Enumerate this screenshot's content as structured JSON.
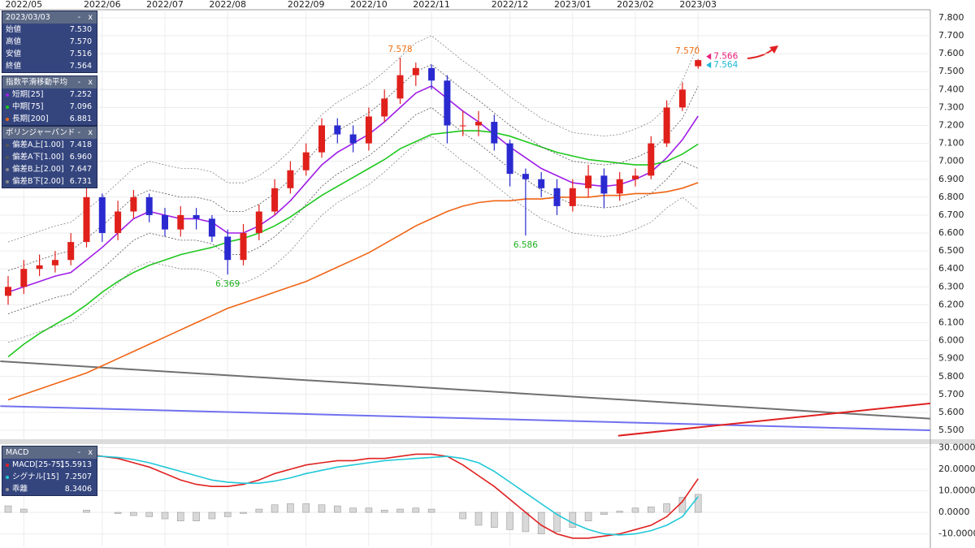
{
  "controls": {
    "minimize": "-",
    "close": "x"
  },
  "chart_data": [
    {
      "type": "candlestick",
      "categories": [
        null,
        "2022/05",
        null,
        null,
        null,
        null,
        "2022/06",
        null,
        null,
        null,
        "2022/07",
        null,
        null,
        null,
        "2022/08",
        null,
        null,
        null,
        null,
        "2022/09",
        null,
        null,
        null,
        "2022/10",
        null,
        null,
        null,
        "2022/11",
        null,
        null,
        null,
        null,
        "2022/12",
        null,
        null,
        null,
        "2023/01",
        null,
        null,
        null,
        "2023/02",
        null,
        null,
        null,
        "2023/03"
      ],
      "open": [
        6.25,
        6.3,
        6.4,
        6.42,
        6.45,
        6.55,
        6.8,
        6.6,
        6.72,
        6.8,
        6.7,
        6.62,
        6.7,
        6.68,
        6.58,
        6.45,
        6.6,
        6.72,
        6.85,
        6.95,
        7.05,
        7.2,
        7.15,
        7.1,
        7.25,
        7.35,
        7.48,
        7.52,
        7.45,
        7.2,
        7.2,
        7.22,
        7.1,
        6.93,
        6.9,
        6.85,
        6.75,
        6.85,
        6.92,
        6.82,
        6.9,
        6.92,
        7.1,
        7.3,
        7.53
      ],
      "high": [
        6.36,
        6.45,
        6.48,
        6.5,
        6.6,
        6.88,
        6.82,
        6.78,
        6.84,
        6.82,
        6.74,
        6.75,
        6.74,
        6.7,
        6.62,
        6.65,
        6.76,
        6.9,
        7.0,
        7.1,
        7.24,
        7.24,
        7.2,
        7.3,
        7.4,
        7.578,
        7.55,
        7.54,
        7.48,
        7.28,
        7.28,
        7.26,
        7.12,
        6.96,
        6.94,
        6.9,
        6.9,
        6.98,
        6.96,
        6.94,
        6.96,
        7.14,
        7.34,
        7.44,
        7.57
      ],
      "low": [
        6.2,
        6.26,
        6.36,
        6.38,
        6.42,
        6.52,
        6.55,
        6.56,
        6.68,
        6.66,
        6.58,
        6.58,
        6.62,
        6.55,
        6.369,
        6.42,
        6.56,
        6.7,
        6.82,
        6.92,
        7.02,
        7.1,
        7.05,
        7.06,
        7.22,
        7.32,
        7.42,
        7.4,
        7.1,
        7.14,
        7.14,
        7.06,
        6.86,
        6.586,
        6.8,
        6.7,
        6.72,
        6.8,
        6.74,
        6.78,
        6.86,
        6.9,
        7.08,
        7.28,
        7.516
      ],
      "close": [
        6.3,
        6.4,
        6.42,
        6.45,
        6.55,
        6.8,
        6.6,
        6.72,
        6.8,
        6.7,
        6.62,
        6.7,
        6.68,
        6.58,
        6.45,
        6.6,
        6.72,
        6.85,
        6.95,
        7.05,
        7.2,
        7.15,
        7.1,
        7.25,
        7.35,
        7.48,
        7.52,
        7.45,
        7.2,
        7.2,
        7.22,
        7.1,
        6.93,
        6.9,
        6.85,
        6.75,
        6.85,
        6.92,
        6.82,
        6.9,
        6.92,
        7.1,
        7.3,
        7.4,
        7.564
      ],
      "up_color": "#e0201b",
      "down_color": "#2a2ad0",
      "ohlc_panel": {
        "title": "2023/03/03",
        "rows": [
          {
            "name": "始値",
            "value": "7.530"
          },
          {
            "name": "高値",
            "value": "7.570"
          },
          {
            "name": "安値",
            "value": "7.516"
          },
          {
            "name": "終値",
            "value": "7.564"
          }
        ]
      },
      "legend_groups": [
        {
          "title": "指数平滑移動平均",
          "series": [
            0,
            1,
            2
          ]
        },
        {
          "title": "ボリンジャーバンド",
          "series": [
            3,
            4,
            5,
            6
          ]
        }
      ],
      "series": [
        {
          "name": "短期[25]",
          "color": "#a01ee6",
          "current": "7.252",
          "values": [
            6.27,
            6.3,
            6.33,
            6.36,
            6.38,
            6.45,
            6.52,
            6.6,
            6.68,
            6.72,
            6.7,
            6.68,
            6.68,
            6.66,
            6.6,
            6.6,
            6.64,
            6.7,
            6.78,
            6.88,
            6.98,
            7.05,
            7.1,
            7.15,
            7.22,
            7.3,
            7.38,
            7.42,
            7.35,
            7.28,
            7.22,
            7.15,
            7.08,
            7.02,
            6.96,
            6.92,
            6.88,
            6.87,
            6.86,
            6.87,
            6.9,
            6.94,
            7.02,
            7.12,
            7.252
          ]
        },
        {
          "name": "中期[75]",
          "color": "#1ec81e",
          "current": "7.096",
          "values": [
            5.91,
            5.98,
            6.04,
            6.09,
            6.14,
            6.2,
            6.27,
            6.33,
            6.38,
            6.42,
            6.45,
            6.48,
            6.5,
            6.52,
            6.55,
            6.57,
            6.6,
            6.64,
            6.69,
            6.75,
            6.81,
            6.86,
            6.91,
            6.96,
            7.01,
            7.07,
            7.11,
            7.15,
            7.16,
            7.17,
            7.17,
            7.16,
            7.14,
            7.11,
            7.08,
            7.05,
            7.03,
            7.01,
            7.0,
            6.99,
            6.98,
            6.98,
            7.0,
            7.04,
            7.096
          ]
        },
        {
          "name": "長期[200]",
          "color": "#f06414",
          "current": "6.881",
          "values": [
            5.67,
            5.7,
            5.73,
            5.76,
            5.79,
            5.82,
            5.86,
            5.9,
            5.94,
            5.98,
            6.02,
            6.06,
            6.1,
            6.14,
            6.18,
            6.21,
            6.24,
            6.27,
            6.3,
            6.33,
            6.37,
            6.41,
            6.45,
            6.49,
            6.54,
            6.59,
            6.64,
            6.68,
            6.72,
            6.75,
            6.77,
            6.78,
            6.78,
            6.79,
            6.79,
            6.8,
            6.8,
            6.8,
            6.81,
            6.81,
            6.82,
            6.82,
            6.83,
            6.85,
            6.881
          ]
        },
        {
          "name": "偏差A上[1.00]",
          "color": "#555555",
          "dotted": true,
          "current": "7.418",
          "values": [
            6.39,
            6.42,
            6.45,
            6.48,
            6.5,
            6.57,
            6.64,
            6.72,
            6.8,
            6.84,
            6.82,
            6.8,
            6.8,
            6.78,
            6.72,
            6.72,
            6.76,
            6.82,
            6.9,
            7.0,
            7.1,
            7.17,
            7.22,
            7.27,
            7.34,
            7.42,
            7.5,
            7.54,
            7.47,
            7.4,
            7.34,
            7.27,
            7.2,
            7.14,
            7.08,
            7.04,
            7.0,
            6.99,
            6.98,
            6.99,
            7.02,
            7.06,
            7.14,
            7.24,
            7.418
          ]
        },
        {
          "name": "偏差A下[1.00]",
          "color": "#555555",
          "dotted": true,
          "current": "6.960",
          "values": [
            6.15,
            6.18,
            6.21,
            6.24,
            6.26,
            6.33,
            6.4,
            6.48,
            6.56,
            6.6,
            6.58,
            6.56,
            6.56,
            6.54,
            6.48,
            6.48,
            6.52,
            6.58,
            6.66,
            6.76,
            6.86,
            6.93,
            6.98,
            7.03,
            7.1,
            7.18,
            7.26,
            7.3,
            7.23,
            7.16,
            7.1,
            7.03,
            6.96,
            6.9,
            6.84,
            6.8,
            6.76,
            6.75,
            6.74,
            6.75,
            6.78,
            6.82,
            6.9,
            7.0,
            6.96
          ]
        },
        {
          "name": "偏差B上[2.00]",
          "color": "#888888",
          "dotted": true,
          "current": "7.647",
          "values": [
            6.55,
            6.58,
            6.61,
            6.64,
            6.66,
            6.73,
            6.8,
            6.88,
            6.96,
            7.0,
            6.98,
            6.96,
            6.96,
            6.94,
            6.88,
            6.88,
            6.92,
            6.98,
            7.06,
            7.16,
            7.26,
            7.33,
            7.38,
            7.43,
            7.5,
            7.58,
            7.66,
            7.7,
            7.63,
            7.56,
            7.5,
            7.43,
            7.36,
            7.3,
            7.24,
            7.2,
            7.16,
            7.15,
            7.14,
            7.15,
            7.18,
            7.22,
            7.3,
            7.45,
            7.647
          ]
        },
        {
          "name": "偏差B下[2.00]",
          "color": "#888888",
          "dotted": true,
          "current": "6.731",
          "values": [
            5.99,
            6.02,
            6.05,
            6.08,
            6.1,
            6.17,
            6.24,
            6.32,
            6.4,
            6.44,
            6.42,
            6.4,
            6.4,
            6.38,
            6.32,
            6.32,
            6.36,
            6.42,
            6.5,
            6.6,
            6.7,
            6.77,
            6.82,
            6.87,
            6.94,
            7.02,
            7.1,
            7.14,
            7.07,
            7.0,
            6.94,
            6.87,
            6.8,
            6.74,
            6.68,
            6.64,
            6.6,
            6.59,
            6.58,
            6.59,
            6.62,
            6.66,
            6.74,
            6.8,
            6.731
          ]
        }
      ],
      "trendlines": [
        {
          "color": "#707070",
          "from": [
            -0.5,
            5.885
          ],
          "to": [
            58.8,
            5.565
          ]
        },
        {
          "color": "#7070f0",
          "from": [
            -0.5,
            5.635
          ],
          "to": [
            58.8,
            5.5
          ]
        },
        {
          "color": "#e02020",
          "from": [
            38.9,
            5.47
          ],
          "to": [
            58.8,
            5.65
          ]
        }
      ],
      "annotations": [
        {
          "label": "7.578",
          "value": 7.578,
          "at": 25,
          "color": "#f07010",
          "position": "above"
        },
        {
          "label": "7.570",
          "value": 7.57,
          "at": 44,
          "color": "#f07010",
          "position": "above"
        },
        {
          "label": "6.369",
          "value": 6.369,
          "at": 14,
          "color": "#20b020",
          "position": "below"
        },
        {
          "label": "6.586",
          "value": 6.586,
          "at": 33,
          "color": "#20b020",
          "position": "below"
        }
      ],
      "price_tags": [
        {
          "label": "7.566",
          "value": 7.566,
          "color": "#e8207a"
        },
        {
          "label": "7.564",
          "value": 7.564,
          "color": "#20b8d8"
        }
      ],
      "ylim": [
        5.455,
        7.845
      ],
      "yticks": [
        {
          "value": 7.8,
          "label": "7.800"
        },
        {
          "value": 7.7,
          "label": "7.700"
        },
        {
          "value": 7.6,
          "label": "7.600"
        },
        {
          "value": 7.5,
          "label": "7.500"
        },
        {
          "value": 7.4,
          "label": "7.400"
        },
        {
          "value": 7.3,
          "label": "7.300"
        },
        {
          "value": 7.2,
          "label": "7.200"
        },
        {
          "value": 7.1,
          "label": "7.100"
        },
        {
          "value": 7.0,
          "label": "7.000"
        },
        {
          "value": 6.9,
          "label": "6.900"
        },
        {
          "value": 6.8,
          "label": "6.800"
        },
        {
          "value": 6.7,
          "label": "6.700"
        },
        {
          "value": 6.6,
          "label": "6.600"
        },
        {
          "value": 6.5,
          "label": "6.500"
        },
        {
          "value": 6.4,
          "label": "6.400"
        },
        {
          "value": 6.3,
          "label": "6.300"
        },
        {
          "value": 6.2,
          "label": "6.200"
        },
        {
          "value": 6.1,
          "label": "6.100"
        },
        {
          "value": 6.0,
          "label": "6.000"
        },
        {
          "value": 5.9,
          "label": "5.900"
        },
        {
          "value": 5.8,
          "label": "5.800"
        },
        {
          "value": 5.7,
          "label": "5.700"
        },
        {
          "value": 5.6,
          "label": "5.600"
        },
        {
          "value": 5.5,
          "label": "5.500"
        }
      ],
      "grid": true
    },
    {
      "type": "macd",
      "legend_title": "MACD",
      "series": [
        {
          "name": "MACD[25-75]",
          "color": "#e02020",
          "current": "15.5913",
          "values": [
            28,
            27,
            26,
            26,
            26,
            27,
            26,
            25,
            23,
            21,
            18,
            15,
            13,
            12,
            12,
            13,
            15,
            18,
            20,
            22,
            23,
            24,
            24,
            25,
            25,
            26,
            27,
            27,
            26,
            22,
            17,
            12,
            6,
            0,
            -6,
            -10,
            -12,
            -12,
            -11,
            -10,
            -8,
            -6,
            -2,
            5,
            15.5913
          ]
        },
        {
          "name": "シグナル[15]",
          "color": "#20c8d8",
          "current": "7.2507",
          "values": [
            25,
            25.5,
            26,
            26,
            26,
            26,
            26,
            25.5,
            24.5,
            23,
            21,
            19,
            17,
            15,
            14,
            13.5,
            13.5,
            14.5,
            16,
            18,
            19.5,
            21,
            22,
            23,
            24,
            24.5,
            25,
            25.5,
            26,
            25,
            23,
            19,
            14,
            9,
            4,
            -1,
            -5,
            -8,
            -10,
            -10.5,
            -10,
            -8.5,
            -6,
            -2,
            7.2507
          ]
        },
        {
          "name": "乖離",
          "color": "#9a9a9a",
          "bars": true,
          "current": "8.3406",
          "values": [
            3,
            1.5,
            0,
            0,
            0,
            1,
            0,
            -0.5,
            -1.5,
            -2,
            -3,
            -4,
            -4,
            -3,
            -2,
            -0.5,
            1.5,
            3.5,
            4,
            4,
            3.5,
            3,
            2,
            2,
            1,
            1.5,
            2,
            1.5,
            0,
            -3,
            -6,
            -7,
            -8,
            -9,
            -10,
            -9,
            -7,
            -4,
            -1,
            0.5,
            2,
            2.5,
            4,
            7,
            8.3406
          ]
        }
      ],
      "ylim": [
        -15.8,
        31.3
      ],
      "yticks": [
        {
          "value": 30,
          "label": "30.0000"
        },
        {
          "value": 20,
          "label": "20.0000"
        },
        {
          "value": 10,
          "label": "10.0000"
        },
        {
          "value": 0,
          "label": "0.0000"
        },
        {
          "value": -10,
          "label": "-10.0000"
        }
      ],
      "grid": true
    }
  ]
}
